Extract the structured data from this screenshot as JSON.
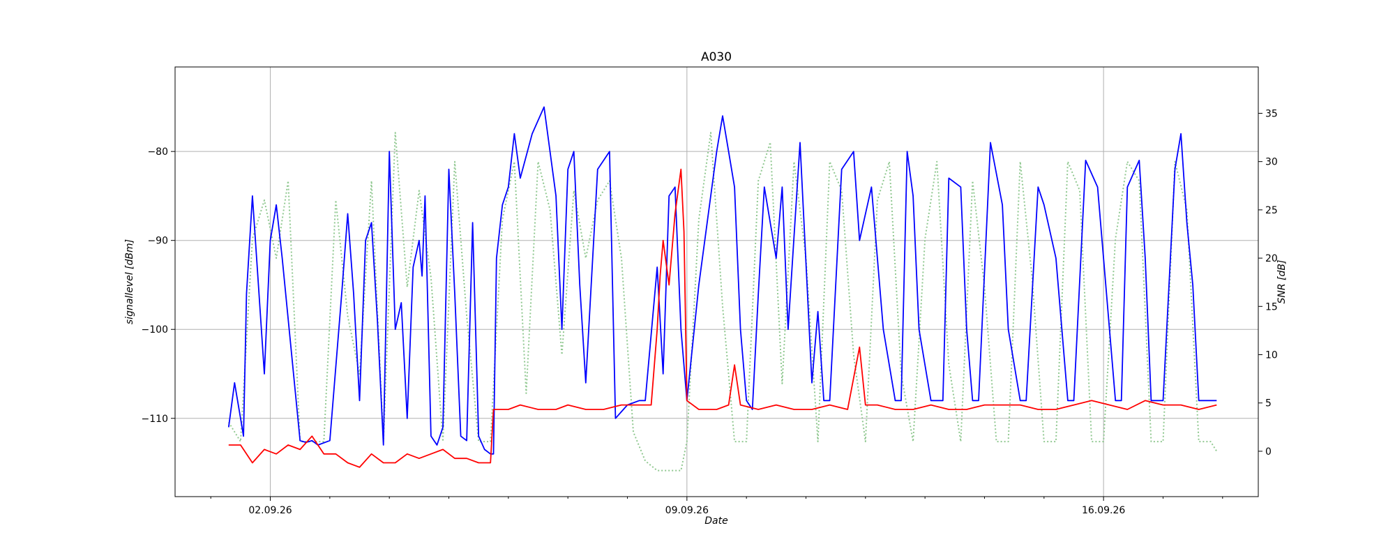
{
  "chart_data": {
    "type": "line",
    "title": "A030",
    "xlabel": "Date",
    "ylabel": "signallevel [dBm]",
    "y2label": "SNR [dB]",
    "x_ticks": [
      "02.09.26",
      "09.09.26",
      "16.09.26"
    ],
    "x_tick_days": [
      2,
      9,
      16
    ],
    "xlim_days": [
      0.4,
      18.6
    ],
    "y_ticks": [
      -80,
      -90,
      -100,
      -110
    ],
    "ylim": [
      -118.8,
      -70.5
    ],
    "y2_ticks": [
      35,
      30,
      25,
      20,
      15,
      10,
      5,
      0
    ],
    "y2lim": [
      -4.7,
      39.8
    ],
    "grid": true,
    "colors": {
      "signal": "#0000ff",
      "noise": "#ff0000",
      "snr": "#90c890"
    },
    "series": [
      {
        "axis": "left",
        "color": "#0000ff",
        "style": "solid",
        "x": [
          1.3,
          1.4,
          1.5,
          1.55,
          1.6,
          1.7,
          1.8,
          1.9,
          2.0,
          2.1,
          2.2,
          2.5,
          2.6,
          2.7,
          2.8,
          3.0,
          3.2,
          3.3,
          3.4,
          3.5,
          3.6,
          3.7,
          3.8,
          3.9,
          4.0,
          4.1,
          4.2,
          4.3,
          4.4,
          4.5,
          4.55,
          4.6,
          4.7,
          4.8,
          4.9,
          5.0,
          5.1,
          5.2,
          5.3,
          5.4,
          5.5,
          5.6,
          5.7,
          5.75,
          5.8,
          5.9,
          6.0,
          6.1,
          6.2,
          6.4,
          6.6,
          6.8,
          6.9,
          7.0,
          7.1,
          7.2,
          7.3,
          7.5,
          7.7,
          7.8,
          8.0,
          8.2,
          8.3,
          8.5,
          8.6,
          8.7,
          8.8,
          8.9,
          9.0,
          9.2,
          9.5,
          9.6,
          9.7,
          9.8,
          9.9,
          10.0,
          10.1,
          10.2,
          10.3,
          10.5,
          10.6,
          10.7,
          10.9,
          11.1,
          11.2,
          11.3,
          11.4,
          11.6,
          11.8,
          11.9,
          12.1,
          12.3,
          12.5,
          12.6,
          12.7,
          12.8,
          12.9,
          13.1,
          13.3,
          13.4,
          13.6,
          13.7,
          13.8,
          13.9,
          14.1,
          14.3,
          14.4,
          14.6,
          14.7,
          14.9,
          15.0,
          15.2,
          15.4,
          15.5,
          15.7,
          15.9,
          16.2,
          16.3,
          16.4,
          16.6,
          16.7,
          16.8,
          17.0,
          17.2,
          17.3,
          17.4,
          17.5,
          17.6,
          17.7,
          17.9
        ],
        "y": [
          -111,
          -106,
          -110,
          -112,
          -96,
          -85,
          -95,
          -105,
          -90,
          -86,
          -92,
          -112.5,
          -112.7,
          -112.5,
          -113,
          -112.5,
          -96,
          -87,
          -96,
          -108,
          -90,
          -88,
          -99,
          -113,
          -80,
          -100,
          -97,
          -110,
          -93,
          -90,
          -94,
          -85,
          -112,
          -113,
          -111,
          -82,
          -96,
          -112,
          -112.5,
          -88,
          -112,
          -113.5,
          -114,
          -114,
          -92,
          -86,
          -84,
          -78,
          -83,
          -78,
          -75,
          -85,
          -100,
          -82,
          -80,
          -95,
          -106,
          -82,
          -80,
          -110,
          -108.5,
          -108,
          -108,
          -93,
          -105,
          -85,
          -84,
          -100,
          -108,
          -95,
          -80,
          -76,
          -80,
          -84,
          -100,
          -108,
          -109,
          -96,
          -84,
          -92,
          -84,
          -100,
          -79,
          -106,
          -98,
          -108,
          -108,
          -82,
          -80,
          -90,
          -84,
          -100,
          -108,
          -108,
          -80,
          -85,
          -100,
          -108,
          -108,
          -83,
          -84,
          -100,
          -108,
          -108,
          -79,
          -86,
          -100,
          -108,
          -108,
          -84,
          -86,
          -92,
          -108,
          -108,
          -81,
          -84,
          -108,
          -108,
          -84,
          -81,
          -92,
          -108,
          -108,
          -82,
          -78,
          -88,
          -95,
          -108,
          -108,
          -108
        ]
      },
      {
        "axis": "left",
        "color": "#ff0000",
        "style": "solid",
        "x": [
          1.3,
          1.5,
          1.7,
          1.9,
          2.1,
          2.3,
          2.5,
          2.7,
          2.9,
          3.1,
          3.3,
          3.5,
          3.7,
          3.9,
          4.1,
          4.3,
          4.5,
          4.7,
          4.9,
          5.1,
          5.3,
          5.5,
          5.6,
          5.7,
          5.75,
          5.8,
          6.0,
          6.2,
          6.5,
          6.8,
          7.0,
          7.3,
          7.6,
          7.9,
          8.2,
          8.4,
          8.5,
          8.55,
          8.6,
          8.7,
          8.8,
          8.9,
          8.95,
          9.0,
          9.2,
          9.5,
          9.7,
          9.8,
          9.9,
          10.2,
          10.5,
          10.8,
          11.1,
          11.4,
          11.7,
          11.9,
          12.0,
          12.2,
          12.5,
          12.8,
          13.1,
          13.4,
          13.7,
          14.0,
          14.3,
          14.6,
          14.9,
          15.2,
          15.5,
          15.8,
          16.1,
          16.4,
          16.7,
          17.0,
          17.3,
          17.6,
          17.9
        ],
        "y": [
          -113,
          -113,
          -115,
          -113.5,
          -114,
          -113,
          -113.5,
          -112,
          -114,
          -114,
          -115,
          -115.5,
          -114,
          -115,
          -115,
          -114,
          -114.5,
          -114,
          -113.5,
          -114.5,
          -114.5,
          -115,
          -115,
          -115,
          -109,
          -109,
          -109,
          -108.5,
          -109,
          -109,
          -108.5,
          -109,
          -109,
          -108.5,
          -108.5,
          -108.5,
          -100,
          -94,
          -90,
          -95,
          -87,
          -82,
          -89,
          -108,
          -109,
          -109,
          -108.5,
          -104,
          -108.5,
          -109,
          -108.5,
          -109,
          -109,
          -108.5,
          -109,
          -102,
          -108.5,
          -108.5,
          -109,
          -109,
          -108.5,
          -109,
          -109,
          -108.5,
          -108.5,
          -108.5,
          -109,
          -109,
          -108.5,
          -108,
          -108.5,
          -109,
          -108,
          -108.5,
          -108.5,
          -109,
          -108.5
        ]
      },
      {
        "axis": "right",
        "color": "#90c890",
        "style": "dotted",
        "x": [
          1.3,
          1.5,
          1.7,
          1.9,
          2.1,
          2.3,
          2.5,
          2.7,
          2.9,
          3.1,
          3.3,
          3.5,
          3.7,
          3.9,
          4.1,
          4.3,
          4.5,
          4.7,
          4.9,
          5.1,
          5.3,
          5.5,
          5.7,
          5.9,
          6.1,
          6.3,
          6.5,
          6.7,
          6.9,
          7.1,
          7.3,
          7.5,
          7.7,
          7.9,
          8.1,
          8.3,
          8.5,
          8.7,
          8.9,
          9.0,
          9.2,
          9.4,
          9.6,
          9.8,
          10.0,
          10.2,
          10.4,
          10.6,
          10.8,
          11.0,
          11.2,
          11.4,
          11.6,
          11.8,
          12.0,
          12.2,
          12.4,
          12.6,
          12.8,
          13.0,
          13.2,
          13.4,
          13.6,
          13.8,
          14.0,
          14.2,
          14.4,
          14.6,
          14.8,
          15.0,
          15.2,
          15.4,
          15.6,
          15.8,
          16.0,
          16.2,
          16.4,
          16.6,
          16.8,
          17.0,
          17.2,
          17.4,
          17.6,
          17.8,
          17.9
        ],
        "y": [
          3,
          1,
          22,
          26,
          20,
          28,
          1,
          1,
          1,
          26,
          14,
          8,
          28,
          1,
          33,
          17,
          27,
          18,
          1,
          30,
          14,
          1,
          1,
          24,
          30,
          6,
          30,
          25,
          10,
          27,
          20,
          26,
          28,
          20,
          2,
          -1,
          -2,
          -2,
          -2,
          1,
          24,
          33,
          15,
          1,
          1,
          28,
          32,
          7,
          30,
          20,
          1,
          30,
          27,
          10,
          1,
          26,
          30,
          8,
          1,
          22,
          30,
          9,
          1,
          28,
          17,
          1,
          1,
          30,
          18,
          1,
          1,
          30,
          27,
          1,
          1,
          22,
          30,
          28,
          1,
          1,
          30,
          25,
          1,
          1,
          0
        ]
      }
    ]
  }
}
